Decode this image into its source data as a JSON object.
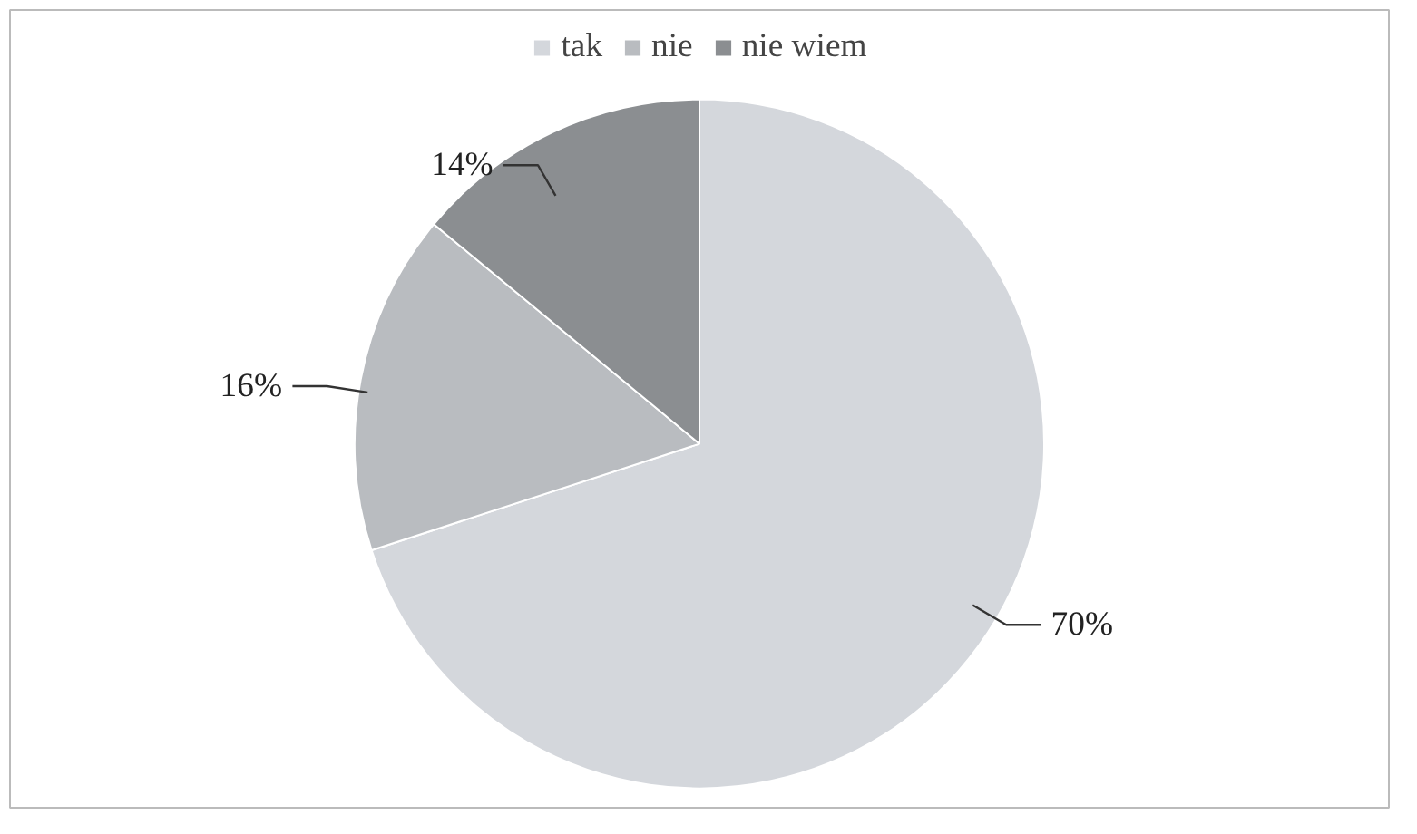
{
  "chart_data": {
    "type": "pie",
    "categories": [
      "tak",
      "nie",
      "nie wiem"
    ],
    "values": [
      70,
      16,
      14
    ],
    "colors": [
      "#d4d7dc",
      "#b9bcc0",
      "#8b8e91"
    ],
    "value_labels": [
      "70%",
      "16%",
      "14%"
    ],
    "legend": "top"
  }
}
